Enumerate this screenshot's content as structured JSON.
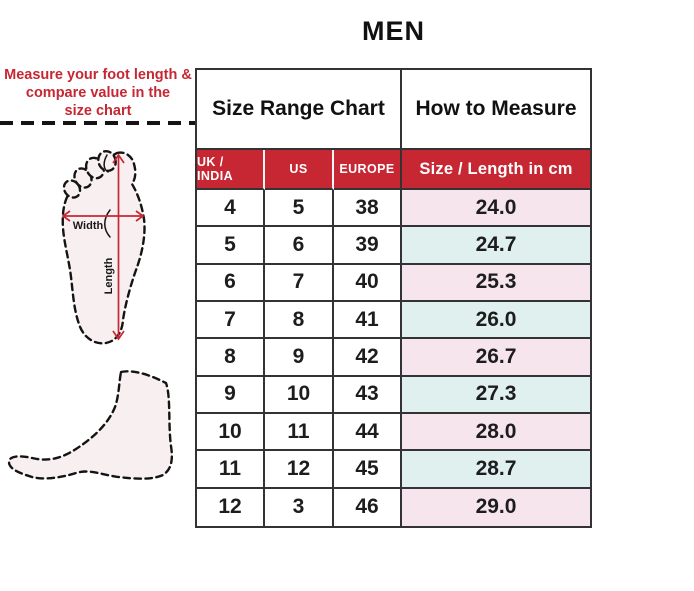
{
  "page": {
    "title": "MEN"
  },
  "instruction": {
    "line1": "Measure your foot length &",
    "line2": "compare value in the",
    "line3": "size chart"
  },
  "diagram": {
    "width_label": "Width",
    "length_label": "Length"
  },
  "table": {
    "merged_header_left": "Size Range Chart",
    "merged_header_right": "How to Measure"
  },
  "chart_data": {
    "type": "table",
    "title": "MEN",
    "columns": [
      "UK / INDIA",
      "US",
      "EUROPE",
      "Size / Length in cm"
    ],
    "rows": [
      [
        "4",
        "5",
        "38",
        "24.0"
      ],
      [
        "5",
        "6",
        "39",
        "24.7"
      ],
      [
        "6",
        "7",
        "40",
        "25.3"
      ],
      [
        "7",
        "8",
        "41",
        "26.0"
      ],
      [
        "8",
        "9",
        "42",
        "26.7"
      ],
      [
        "9",
        "10",
        "43",
        "27.3"
      ],
      [
        "10",
        "11",
        "44",
        "28.0"
      ],
      [
        "11",
        "12",
        "45",
        "28.7"
      ],
      [
        "12",
        "3",
        "46",
        "29.0"
      ]
    ]
  },
  "colors": {
    "accent_red": "#C62733",
    "row_pink": "#F7E5EE",
    "row_blue": "#DFF0EF",
    "border_dark": "#333333",
    "foot_fill": "#F8EFF1"
  }
}
